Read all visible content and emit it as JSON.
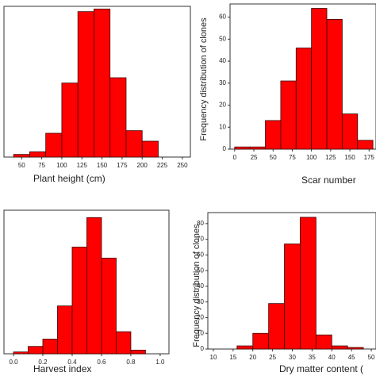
{
  "chart_data": [
    {
      "type": "histogram",
      "xlabel": "Plant height (cm)",
      "bins": [
        40,
        60,
        80,
        100,
        120,
        140,
        160,
        180,
        200,
        220
      ],
      "values": [
        1,
        2,
        9,
        28,
        55,
        56,
        30,
        10,
        6
      ],
      "color": "#ff0000",
      "xlim": [
        28,
        260
      ],
      "ylim": [
        0,
        57
      ],
      "xticks": [
        50,
        75,
        100,
        125,
        150,
        175,
        200,
        225,
        250
      ]
    },
    {
      "type": "histogram",
      "xlabel": "Scar number",
      "ylabel": "Frequency distribution of clones",
      "bins": [
        0,
        20,
        40,
        60,
        80,
        100,
        120,
        140,
        160,
        180
      ],
      "values": [
        1,
        1,
        13,
        31,
        46,
        64,
        59,
        16,
        4
      ],
      "color": "#ff0000",
      "xlim": [
        -6,
        184
      ],
      "ylim": [
        0,
        66
      ],
      "xticks": [
        0,
        25,
        50,
        75,
        100,
        125,
        150,
        175
      ],
      "yticks": [
        0,
        10,
        20,
        30,
        40,
        50,
        60
      ]
    },
    {
      "type": "histogram",
      "xlabel": "Harvest index",
      "bins": [
        0,
        0.1,
        0.2,
        0.3,
        0.4,
        0.5,
        0.6,
        0.7,
        0.8,
        0.9
      ],
      "values": [
        0.5,
        2,
        4,
        13,
        29,
        37,
        26,
        6,
        1
      ],
      "color": "#ff0000",
      "xlim": [
        -0.065,
        1.06
      ],
      "ylim": [
        0,
        39
      ],
      "xticks": [
        {
          "value": 0,
          "label": "0.0"
        },
        0.2,
        0.4,
        0.6,
        0.8,
        {
          "value": 1,
          "label": "1.0"
        }
      ]
    },
    {
      "type": "histogram",
      "xlabel": "Dry matter content (",
      "ylabel": "Frequency distribution of clones",
      "bins": [
        16,
        20,
        24,
        28,
        32,
        36,
        40,
        44,
        48
      ],
      "values": [
        2,
        10,
        29,
        67,
        84,
        9,
        2,
        1
      ],
      "color": "#ff0000",
      "xlim": [
        8.6,
        51.2
      ],
      "ylim": [
        0,
        87
      ],
      "xticks": [
        10,
        15,
        20,
        25,
        30,
        35,
        40,
        45,
        50
      ],
      "yticks": [
        0,
        10,
        20,
        30,
        40,
        50,
        60,
        70,
        80
      ]
    }
  ]
}
